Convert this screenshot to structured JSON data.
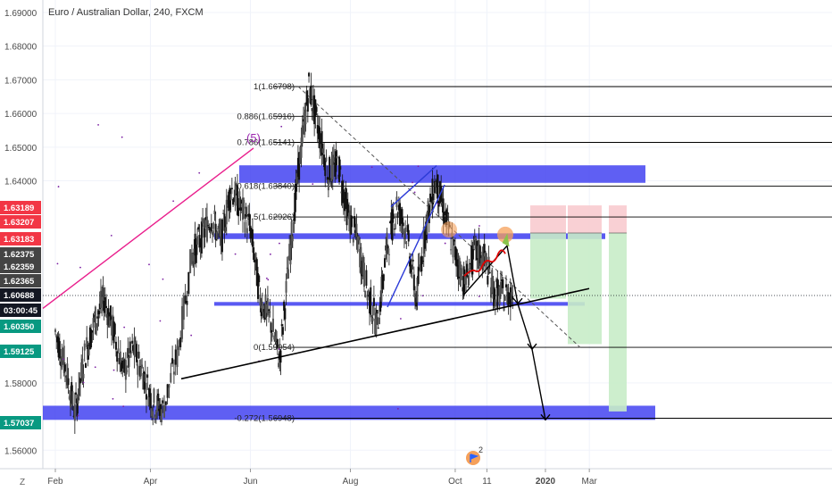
{
  "header": {
    "title": "Euro / Australian Dollar, 240, FXCM"
  },
  "chart_data": {
    "type": "line",
    "title": "Euro / Australian Dollar, 240, FXCM",
    "y_ticks": [
      "1.69000",
      "1.68000",
      "1.67000",
      "1.66000",
      "1.65000",
      "1.64000",
      "1.58000",
      "1.56000"
    ],
    "ylim": [
      1.5545,
      1.6937
    ],
    "x_ticks": [
      "Feb",
      "Apr",
      "Jun",
      "Aug",
      "Oct",
      "11",
      "2020",
      "Mar"
    ],
    "x_tick_fracs": [
      0.0,
      0.195,
      0.4,
      0.605,
      0.82,
      0.885,
      1.005,
      1.095
    ],
    "series": [
      {
        "x": [
          0.0,
          0.02,
          0.04,
          0.06,
          0.08,
          0.1,
          0.12,
          0.14,
          0.16,
          0.18,
          0.2,
          0.22,
          0.25,
          0.28,
          0.3,
          0.32,
          0.34,
          0.36,
          0.38,
          0.4,
          0.42,
          0.44,
          0.46,
          0.48,
          0.5,
          0.52,
          0.54,
          0.56,
          0.58,
          0.6,
          0.62,
          0.64,
          0.66,
          0.68,
          0.7,
          0.72,
          0.74,
          0.76,
          0.78,
          0.8,
          0.82,
          0.84,
          0.86,
          0.88,
          0.9,
          0.92,
          0.94
        ],
        "values": [
          1.5952,
          1.585,
          1.571,
          1.588,
          1.598,
          1.605,
          1.595,
          1.583,
          1.59,
          1.583,
          1.574,
          1.572,
          1.588,
          1.618,
          1.6234,
          1.629,
          1.622,
          1.638,
          1.632,
          1.626,
          1.605,
          1.599,
          1.587,
          1.617,
          1.645,
          1.668,
          1.655,
          1.642,
          1.645,
          1.63,
          1.622,
          1.607,
          1.597,
          1.62,
          1.633,
          1.625,
          1.605,
          1.627,
          1.64,
          1.629,
          1.618,
          1.6095,
          1.619,
          1.617,
          1.6069,
          1.606,
          1.607
        ]
      }
    ],
    "price_tags": [
      {
        "label": "1.63189",
        "value": 1.63189,
        "color": "#f23645"
      },
      {
        "label": "1.63207",
        "value": 1.63207,
        "color": "#f23645"
      },
      {
        "label": "1.63183",
        "value": 1.63183,
        "color": "#f23645"
      },
      {
        "label": "1.62375",
        "value": 1.62375,
        "color": "#444444"
      },
      {
        "label": "1.62359",
        "value": 1.62359,
        "color": "#444444"
      },
      {
        "label": "1.62365",
        "value": 1.62365,
        "color": "#444444"
      },
      {
        "label": "1.60688",
        "value": 1.60688,
        "color": "#131722"
      },
      {
        "label": "03:00:45",
        "value": 1.602,
        "color": "#131722"
      },
      {
        "label": "1.60350",
        "value": 1.6035,
        "color": "#089981"
      },
      {
        "label": "1.59125",
        "value": 1.59125,
        "color": "#089981"
      },
      {
        "label": "1.57037",
        "value": 1.57037,
        "color": "#089981"
      }
    ],
    "fibonacci": [
      {
        "label": "1(1.66798)",
        "value": 1.66798
      },
      {
        "label": "0.886(1.65916)",
        "value": 1.65916
      },
      {
        "label": "0.786(1.65141)",
        "value": 1.65141
      },
      {
        "label": "0.618(1.63840)",
        "value": 1.6384
      },
      {
        "label": "0.5(1.62926)",
        "value": 1.62926
      },
      {
        "label": "0(1.59054)",
        "value": 1.59054
      },
      {
        "label": "-0.272(1.56948)",
        "value": 1.56948
      }
    ],
    "annotations": [
      {
        "label": "(5)"
      }
    ],
    "grid": true,
    "colors": {
      "up": "#000000",
      "down": "#000000",
      "zone": "#3c3cf0",
      "fib": "#000000",
      "pink": "#e91e8c",
      "stop": "#f8c8cc",
      "target": "#c8ecc8"
    }
  },
  "axis": {
    "corner_label": "Z"
  },
  "icons": {
    "event_icon": "flag-icon",
    "event_count": "2"
  }
}
